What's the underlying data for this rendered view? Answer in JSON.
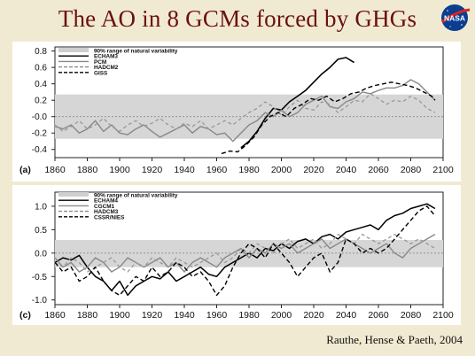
{
  "slide": {
    "title": "The AO in 8 GCMs forced by GHGs",
    "logo_text": "NASA",
    "citation": "Rauthe, Hense & Paeth, 2004"
  },
  "chart_data": [
    {
      "type": "line",
      "panel_label": "(a)",
      "xlim": [
        1860,
        2100
      ],
      "ylim": [
        -0.5,
        0.85
      ],
      "xticks": [
        1860,
        1880,
        1900,
        1920,
        1940,
        1960,
        1980,
        2000,
        2020,
        2040,
        2060,
        2080,
        2100
      ],
      "yticks": [
        0.8,
        0.6,
        0.4,
        0.2,
        0.0,
        -0.2,
        -0.4
      ],
      "ytick_labels": [
        "0.8",
        "0.6",
        "0.4",
        "0.2",
        "-0.0",
        "-0.2",
        "-0.4"
      ],
      "natural_variability_band": [
        -0.27,
        0.27
      ],
      "zero_line": 0.0,
      "legend_position": "top-left",
      "legend": [
        {
          "label": "90% range of natural variability",
          "style": "band"
        },
        {
          "label": "ECHAM3",
          "style": "solid-black"
        },
        {
          "label": "PCM",
          "style": "solid-gray"
        },
        {
          "label": "HADCM2",
          "style": "dashed-gray"
        },
        {
          "label": "GISS",
          "style": "dashed-black"
        }
      ],
      "series": [
        {
          "name": "ECHAM3",
          "color": "#000000",
          "dash": "",
          "width": 1.6,
          "x": [
            1975,
            1980,
            1985,
            1990,
            1995,
            2000,
            2005,
            2010,
            2015,
            2020,
            2025,
            2030,
            2035,
            2040,
            2045
          ],
          "y": [
            -0.38,
            -0.3,
            -0.18,
            -0.02,
            0.1,
            0.08,
            0.18,
            0.25,
            0.32,
            0.42,
            0.52,
            0.6,
            0.7,
            0.72,
            0.66
          ]
        },
        {
          "name": "PCM",
          "color": "#888888",
          "dash": "",
          "width": 1.4,
          "x": [
            1860,
            1865,
            1870,
            1875,
            1880,
            1885,
            1890,
            1895,
            1900,
            1905,
            1910,
            1915,
            1920,
            1925,
            1930,
            1935,
            1940,
            1945,
            1950,
            1955,
            1960,
            1965,
            1970,
            1975,
            1980,
            1985,
            1990,
            1995,
            2000,
            2005,
            2010,
            2015,
            2020,
            2025,
            2030,
            2035,
            2040,
            2045,
            2050,
            2055,
            2060,
            2065,
            2070,
            2075,
            2080,
            2085,
            2090,
            2095
          ],
          "y": [
            -0.12,
            -0.15,
            -0.1,
            -0.2,
            -0.15,
            -0.05,
            -0.18,
            -0.1,
            -0.2,
            -0.22,
            -0.15,
            -0.1,
            -0.18,
            -0.25,
            -0.2,
            -0.15,
            -0.1,
            -0.2,
            -0.12,
            -0.15,
            -0.22,
            -0.2,
            -0.3,
            -0.2,
            -0.1,
            -0.05,
            0.05,
            0.0,
            0.08,
            0.0,
            0.05,
            0.15,
            0.2,
            0.25,
            0.12,
            0.1,
            0.18,
            0.22,
            0.3,
            0.28,
            0.32,
            0.35,
            0.35,
            0.38,
            0.45,
            0.4,
            0.3,
            0.2
          ]
        },
        {
          "name": "HADCM2",
          "color": "#999999",
          "dash": "4,3",
          "width": 1.3,
          "x": [
            1860,
            1865,
            1870,
            1875,
            1880,
            1885,
            1890,
            1895,
            1900,
            1905,
            1910,
            1915,
            1920,
            1925,
            1930,
            1935,
            1940,
            1945,
            1950,
            1955,
            1960,
            1965,
            1970,
            1975,
            1980,
            1985,
            1990,
            1995,
            2000,
            2005,
            2010,
            2015,
            2020,
            2025,
            2030,
            2035,
            2040,
            2045,
            2050,
            2055,
            2060,
            2065,
            2070,
            2075,
            2080,
            2085,
            2090,
            2095
          ],
          "y": [
            -0.1,
            -0.18,
            -0.12,
            -0.05,
            -0.15,
            -0.1,
            -0.02,
            -0.12,
            -0.18,
            -0.1,
            -0.05,
            -0.12,
            -0.08,
            -0.02,
            -0.1,
            -0.15,
            -0.08,
            -0.12,
            -0.05,
            -0.15,
            -0.1,
            -0.05,
            -0.1,
            -0.02,
            0.05,
            0.1,
            0.18,
            0.12,
            0.02,
            0.12,
            0.2,
            0.1,
            0.08,
            0.18,
            0.15,
            0.05,
            0.12,
            0.2,
            0.18,
            0.28,
            0.22,
            0.15,
            0.2,
            0.18,
            0.25,
            0.2,
            0.1,
            0.05
          ]
        },
        {
          "name": "GISS",
          "color": "#000000",
          "dash": "5,3",
          "width": 1.4,
          "x": [
            1963,
            1968,
            1973,
            1978,
            1983,
            1988,
            1993,
            1998,
            2003,
            2008,
            2013,
            2018,
            2023,
            2028,
            2033,
            2038,
            2043,
            2048,
            2053,
            2058,
            2063,
            2068,
            2073,
            2078,
            2083,
            2088,
            2093,
            2095
          ],
          "y": [
            -0.45,
            -0.42,
            -0.43,
            -0.35,
            -0.25,
            -0.1,
            0.0,
            0.05,
            0.0,
            0.1,
            0.15,
            0.22,
            0.2,
            0.25,
            0.18,
            0.22,
            0.28,
            0.3,
            0.35,
            0.38,
            0.4,
            0.42,
            0.4,
            0.38,
            0.35,
            0.3,
            0.25,
            0.2
          ]
        }
      ]
    },
    {
      "type": "line",
      "panel_label": "(c)",
      "xlim": [
        1860,
        2100
      ],
      "ylim": [
        -1.1,
        1.3
      ],
      "xticks": [
        1860,
        1880,
        1900,
        1920,
        1940,
        1960,
        1980,
        2000,
        2020,
        2040,
        2060,
        2080,
        2100
      ],
      "yticks": [
        1.0,
        0.5,
        0.0,
        -0.5,
        -1.0
      ],
      "ytick_labels": [
        "1.0",
        "0.5",
        "0.0",
        "-0.5",
        "-1.0"
      ],
      "natural_variability_band": [
        -0.3,
        0.28
      ],
      "zero_line": 0.0,
      "legend_position": "top-left",
      "legend": [
        {
          "label": "90% range of natural variability",
          "style": "band"
        },
        {
          "label": "ECHAM4",
          "style": "solid-black"
        },
        {
          "label": "CGCM1",
          "style": "solid-gray"
        },
        {
          "label": "HADCM3",
          "style": "dashed-gray"
        },
        {
          "label": "CSSR/NIES",
          "style": "dashed-black"
        }
      ],
      "series": [
        {
          "name": "ECHAM4",
          "color": "#000000",
          "dash": "",
          "width": 1.5,
          "x": [
            1860,
            1865,
            1870,
            1875,
            1880,
            1885,
            1890,
            1895,
            1900,
            1905,
            1910,
            1915,
            1920,
            1925,
            1930,
            1935,
            1940,
            1945,
            1950,
            1955,
            1960,
            1965,
            1970,
            1975,
            1980,
            1985,
            1990,
            1995,
            2000,
            2005,
            2010,
            2015,
            2020,
            2025,
            2030,
            2035,
            2040,
            2045,
            2050,
            2055,
            2060,
            2065,
            2070,
            2075,
            2080,
            2085,
            2090,
            2095
          ],
          "y": [
            -0.2,
            -0.1,
            -0.15,
            -0.05,
            -0.3,
            -0.5,
            -0.6,
            -0.8,
            -0.6,
            -0.9,
            -0.7,
            -0.6,
            -0.5,
            -0.55,
            -0.4,
            -0.6,
            -0.5,
            -0.4,
            -0.3,
            -0.45,
            -0.5,
            -0.3,
            -0.2,
            -0.1,
            0.0,
            -0.1,
            0.1,
            0.05,
            0.2,
            0.1,
            0.25,
            0.3,
            0.2,
            0.35,
            0.4,
            0.3,
            0.45,
            0.5,
            0.55,
            0.6,
            0.5,
            0.7,
            0.8,
            0.85,
            0.95,
            1.0,
            1.05,
            0.95
          ]
        },
        {
          "name": "CGCM1",
          "color": "#888888",
          "dash": "",
          "width": 1.4,
          "x": [
            1860,
            1865,
            1870,
            1875,
            1880,
            1885,
            1890,
            1895,
            1900,
            1905,
            1910,
            1915,
            1920,
            1925,
            1930,
            1935,
            1940,
            1945,
            1950,
            1955,
            1960,
            1965,
            1970,
            1975,
            1980,
            1985,
            1990,
            1995,
            2000,
            2005,
            2010,
            2015,
            2020,
            2025,
            2030,
            2035,
            2040,
            2045,
            2050,
            2055,
            2060,
            2065,
            2070,
            2075,
            2080,
            2085,
            2090,
            2095
          ],
          "y": [
            -0.1,
            -0.3,
            -0.2,
            -0.4,
            -0.3,
            -0.1,
            -0.2,
            -0.4,
            -0.3,
            -0.1,
            -0.2,
            -0.3,
            -0.2,
            -0.1,
            -0.3,
            -0.2,
            -0.4,
            -0.2,
            -0.1,
            -0.2,
            -0.3,
            -0.1,
            0.0,
            0.1,
            -0.1,
            0.1,
            0.0,
            0.2,
            0.1,
            0.2,
            0.0,
            0.1,
            0.2,
            0.3,
            0.1,
            0.2,
            0.3,
            0.2,
            0.1,
            0.0,
            0.1,
            0.2,
            0.0,
            -0.1,
            0.1,
            0.2,
            0.3,
            0.4
          ]
        },
        {
          "name": "HADCM3",
          "color": "#999999",
          "dash": "4,3",
          "width": 1.3,
          "x": [
            1860,
            1865,
            1870,
            1875,
            1880,
            1885,
            1890,
            1895,
            1900,
            1905,
            1910,
            1915,
            1920,
            1925,
            1930,
            1935,
            1940,
            1945,
            1950,
            1955,
            1960,
            1965,
            1970,
            1975,
            1980,
            1985,
            1990,
            1995,
            2000,
            2005,
            2010,
            2015,
            2020,
            2025,
            2030,
            2035,
            2040,
            2045,
            2050,
            2055,
            2060,
            2065,
            2070,
            2075,
            2080,
            2085,
            2090,
            2095
          ],
          "y": [
            -0.2,
            -0.3,
            -0.1,
            -0.2,
            -0.4,
            -0.3,
            -0.2,
            -0.1,
            -0.3,
            -0.4,
            -0.2,
            -0.3,
            -0.1,
            -0.2,
            -0.3,
            -0.1,
            -0.2,
            -0.3,
            -0.2,
            -0.1,
            0.0,
            -0.2,
            -0.1,
            0.1,
            0.0,
            0.2,
            0.1,
            0.0,
            0.2,
            0.3,
            0.1,
            0.2,
            0.3,
            0.1,
            0.2,
            0.4,
            0.3,
            0.2,
            0.4,
            0.3,
            0.2,
            0.3,
            0.4,
            0.3,
            0.2,
            0.3,
            0.2,
            0.1
          ]
        },
        {
          "name": "CSSR/NIES",
          "color": "#000000",
          "dash": "5,3",
          "width": 1.4,
          "x": [
            1860,
            1865,
            1870,
            1875,
            1880,
            1885,
            1890,
            1895,
            1900,
            1905,
            1910,
            1915,
            1920,
            1925,
            1930,
            1935,
            1940,
            1945,
            1950,
            1955,
            1960,
            1965,
            1970,
            1975,
            1980,
            1985,
            1990,
            1995,
            2000,
            2005,
            2010,
            2015,
            2020,
            2025,
            2030,
            2035,
            2040,
            2045,
            2050,
            2055,
            2060,
            2065,
            2070,
            2075,
            2080,
            2085,
            2090,
            2095
          ],
          "y": [
            -0.2,
            -0.4,
            -0.3,
            -0.6,
            -0.5,
            -0.3,
            -0.6,
            -0.8,
            -0.9,
            -0.7,
            -0.5,
            -0.6,
            -0.3,
            -0.5,
            -0.4,
            -0.2,
            -0.3,
            -0.5,
            -0.4,
            -0.6,
            -0.9,
            -0.7,
            -0.3,
            0.0,
            0.2,
            0.1,
            -0.1,
            0.2,
            0.0,
            -0.2,
            -0.5,
            -0.3,
            -0.1,
            0.0,
            -0.4,
            -0.2,
            0.3,
            0.2,
            0.0,
            0.1,
            0.0,
            0.1,
            0.3,
            0.5,
            0.7,
            0.9,
            1.0,
            0.8
          ]
        }
      ]
    }
  ]
}
